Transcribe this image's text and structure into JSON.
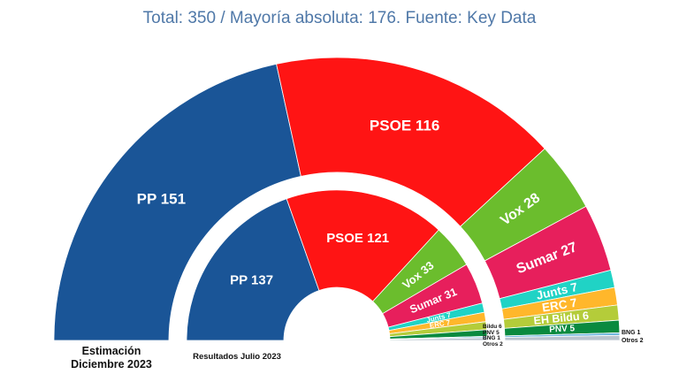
{
  "title": "Total: 350 / Mayoría absoluta: 176. Fuente: Key Data",
  "chart_data": {
    "type": "parliament-semicircle",
    "total_seats": 350,
    "rings": [
      {
        "name": "Estimación Diciembre 2023",
        "caption_line1": "Estimación",
        "caption_line2": "Diciembre 2023",
        "seats": [
          {
            "party": "PP",
            "value": 151,
            "label": "PP 151",
            "color": "#1a5597",
            "text_color": "#ffffff"
          },
          {
            "party": "PSOE",
            "value": 116,
            "label": "PSOE 116",
            "color": "#ff1414",
            "text_color": "#ffffff"
          },
          {
            "party": "Vox",
            "value": 28,
            "label": "Vox 28",
            "color": "#6bbd2d",
            "text_color": "#ffffff"
          },
          {
            "party": "Sumar",
            "value": 27,
            "label": "Sumar 27",
            "color": "#e71f5c",
            "text_color": "#ffffff"
          },
          {
            "party": "Junts",
            "value": 7,
            "label": "Junts 7",
            "color": "#20d3c5",
            "text_color": "#ffffff"
          },
          {
            "party": "ERC",
            "value": 7,
            "label": "ERC 7",
            "color": "#ffb72b",
            "text_color": "#ffffff"
          },
          {
            "party": "EH Bildu",
            "value": 6,
            "label": "EH Bildu 6",
            "color": "#b4cc3a",
            "text_color": "#ffffff"
          },
          {
            "party": "PNV",
            "value": 5,
            "label": "PNV 5",
            "color": "#0a8a3f",
            "text_color": "#ffffff"
          },
          {
            "party": "BNG",
            "value": 1,
            "label": "BNG 1",
            "color": "#6fb6de",
            "text_color": "#111111"
          },
          {
            "party": "Otros",
            "value": 2,
            "label": "Otros 2",
            "color": "#b9c4cf",
            "text_color": "#111111"
          }
        ]
      },
      {
        "name": "Resultados Julio 2023",
        "caption_line1": "Resultados Julio 2023",
        "seats": [
          {
            "party": "PP",
            "value": 137,
            "label": "PP 137",
            "color": "#1a5597",
            "text_color": "#ffffff"
          },
          {
            "party": "PSOE",
            "value": 121,
            "label": "PSOE 121",
            "color": "#ff1414",
            "text_color": "#ffffff"
          },
          {
            "party": "Vox",
            "value": 33,
            "label": "Vox 33",
            "color": "#6bbd2d",
            "text_color": "#ffffff"
          },
          {
            "party": "Sumar",
            "value": 31,
            "label": "Sumar 31",
            "color": "#e71f5c",
            "text_color": "#ffffff"
          },
          {
            "party": "Junts",
            "value": 7,
            "label": "Junts 7",
            "color": "#20d3c5",
            "text_color": "#ffffff"
          },
          {
            "party": "ERC",
            "value": 7,
            "label": "ERC 7",
            "color": "#ffb72b",
            "text_color": "#ffffff"
          },
          {
            "party": "Bildu",
            "value": 6,
            "label": "Bildu 6",
            "color": "#b4cc3a",
            "text_color": "#111111"
          },
          {
            "party": "PNV",
            "value": 5,
            "label": "PNV 5",
            "color": "#0a8a3f",
            "text_color": "#111111"
          },
          {
            "party": "BNG",
            "value": 1,
            "label": "BNG 1",
            "color": "#6fb6de",
            "text_color": "#111111"
          },
          {
            "party": "Otros",
            "value": 2,
            "label": "Otros 2",
            "color": "#b9c4cf",
            "text_color": "#111111"
          }
        ]
      }
    ]
  }
}
